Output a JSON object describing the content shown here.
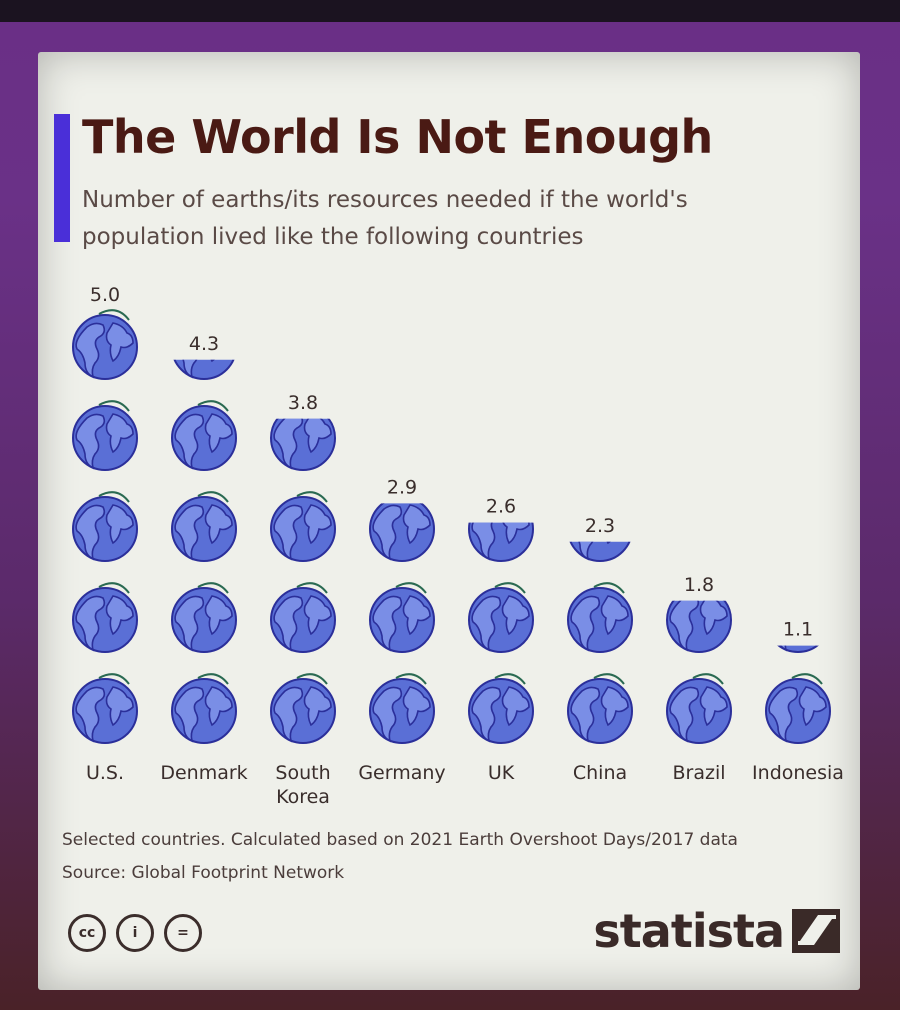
{
  "title": "The World Is Not Enough",
  "subtitle": "Number of earths/its resources needed if the world's population lived like the following countries",
  "notes": {
    "selected": "Selected countries. Calculated based on 2021 Earth Overshoot Days/2017 data",
    "source": "Source: Global Footprint Network"
  },
  "license_icons": [
    "cc-icon",
    "attribution-icon",
    "no-derivatives-icon"
  ],
  "license_labels": [
    "cc",
    "i",
    "="
  ],
  "brand": "statista",
  "colors": {
    "accent": "#4a2fd8",
    "title": "#4a1a14",
    "earth_ocean": "#5a6fd6",
    "earth_land": "#7a8ee6",
    "earth_line": "#2b2f9a"
  },
  "chart_data": {
    "type": "bar",
    "unit_icon": "earth-icon",
    "categories": [
      "U.S.",
      "Denmark",
      "South Korea",
      "Germany",
      "UK",
      "China",
      "Brazil",
      "Indonesia"
    ],
    "category_lines": [
      [
        "U.S."
      ],
      [
        "Denmark"
      ],
      [
        "South",
        "Korea"
      ],
      [
        "Germany"
      ],
      [
        "UK"
      ],
      [
        "China"
      ],
      [
        "Brazil"
      ],
      [
        "Indonesia"
      ]
    ],
    "values": [
      5.0,
      4.3,
      3.8,
      2.9,
      2.6,
      2.3,
      1.8,
      1.1
    ],
    "value_labels": [
      "5.0",
      "4.3",
      "3.8",
      "2.9",
      "2.6",
      "2.3",
      "1.8",
      "1.1"
    ]
  }
}
